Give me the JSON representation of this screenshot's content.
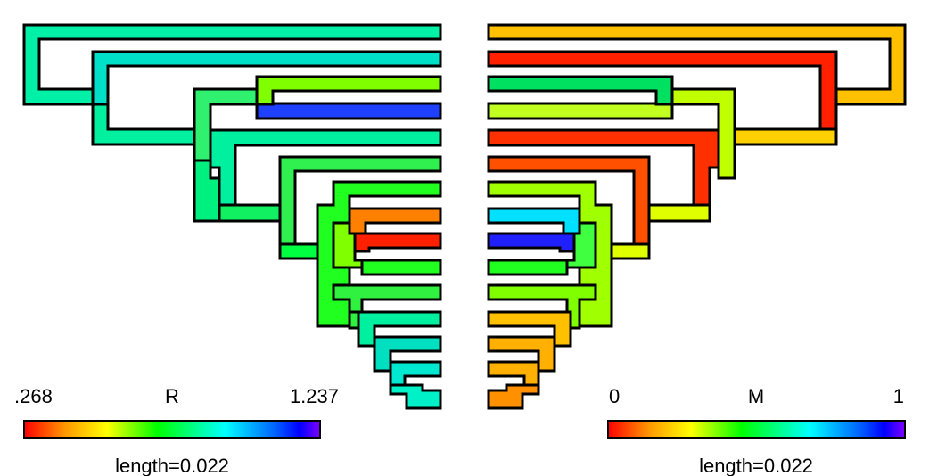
{
  "left_legend": {
    "min_label": ".268",
    "variable": "R",
    "max_label": "1.237",
    "length_label": "length=0.022",
    "palette": [
      "#ff0000",
      "#ffa000",
      "#ffff00",
      "#00ff00",
      "#00ffff",
      "#0060ff",
      "#0000ff",
      "#8000ff"
    ]
  },
  "right_legend": {
    "min_label": "0",
    "variable": "M",
    "max_label": "1",
    "length_label": "length=0.022",
    "palette": [
      "#ff0000",
      "#ffa000",
      "#ffff00",
      "#00ff00",
      "#00ffff",
      "#0060ff",
      "#0000ff",
      "#8000ff"
    ]
  },
  "tip_count": 15
}
